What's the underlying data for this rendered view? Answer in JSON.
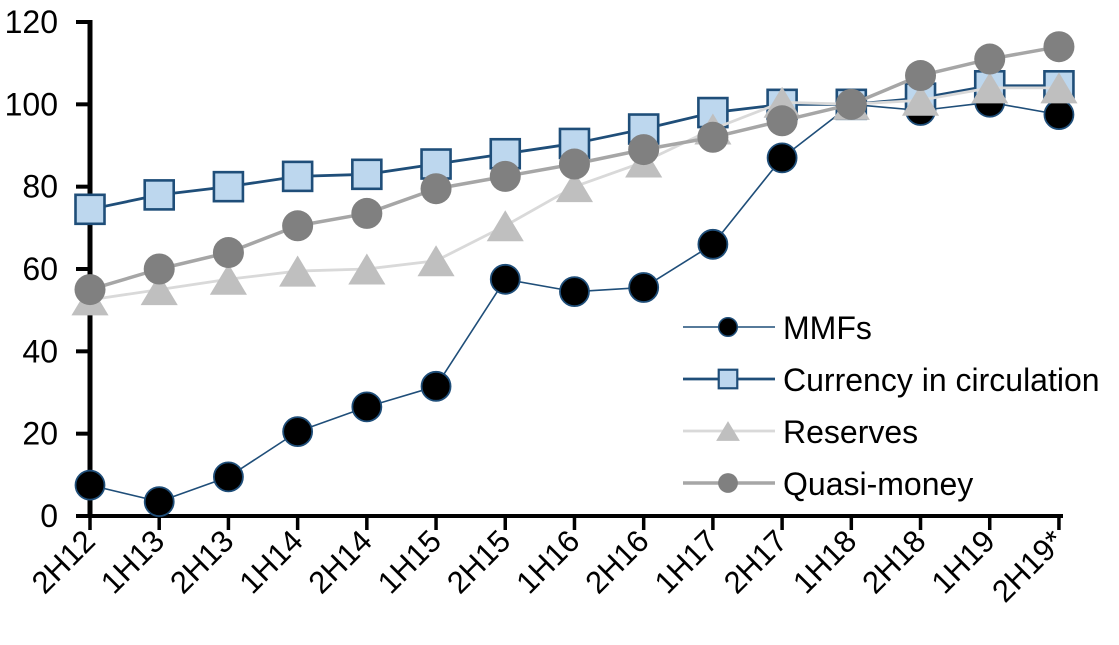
{
  "chart_data": {
    "type": "line",
    "title": "",
    "categories": [
      "2H12",
      "1H13",
      "2H13",
      "1H14",
      "2H14",
      "1H15",
      "2H15",
      "1H16",
      "2H16",
      "1H17",
      "2H17",
      "1H18",
      "2H18",
      "1H19",
      "2H19*"
    ],
    "series": [
      {
        "name": "MMFs",
        "marker": "circle",
        "marker_fill": "#000000",
        "marker_stroke": "#1F4E79",
        "line_color": "#1F4E79",
        "line_width": 1.6,
        "marker_size": 29,
        "values": [
          7.5,
          3.5,
          9.5,
          20.5,
          26.5,
          31.5,
          57.5,
          54.5,
          55.5,
          66,
          87,
          100,
          98.5,
          100.5,
          97.5
        ]
      },
      {
        "name": "Currency in circulation",
        "marker": "square",
        "marker_fill": "#BDD7EE",
        "marker_stroke": "#1F4E79",
        "line_color": "#1F4E79",
        "line_width": 2.8,
        "marker_size": 29,
        "values": [
          74.5,
          78,
          80,
          82.5,
          83,
          85.5,
          88,
          90.5,
          94,
          98,
          100,
          100,
          101.5,
          104.5,
          104.5
        ]
      },
      {
        "name": "Reserves",
        "marker": "triangle",
        "marker_fill": "#BFBFBF",
        "marker_stroke": "none",
        "line_color": "#D9D9D9",
        "line_width": 2.8,
        "marker_size": 32,
        "values": [
          52.5,
          55,
          57.5,
          59.5,
          60,
          62,
          70.5,
          80,
          86,
          94,
          100.5,
          100,
          101,
          104,
          104
        ]
      },
      {
        "name": "Quasi-money",
        "marker": "circle",
        "marker_fill": "#808080",
        "marker_stroke": "none",
        "line_color": "#A6A6A6",
        "line_width": 3.5,
        "marker_size": 31,
        "values": [
          55,
          60,
          64,
          70.5,
          73.5,
          79.5,
          82.5,
          85.5,
          89,
          92,
          96,
          100,
          107,
          111,
          114
        ]
      }
    ],
    "y_axis": {
      "min": 0,
      "max": 120,
      "tick_step": 20,
      "ticks": [
        "0",
        "20",
        "40",
        "60",
        "80",
        "100",
        "120"
      ]
    },
    "x_axis": {
      "label_rotation_degrees": -45
    },
    "legend": {
      "position": "inside-right",
      "items": [
        "MMFs",
        "Currency in circulation",
        "Reserves",
        "Quasi-money"
      ]
    },
    "axis_color": "#000000",
    "grid": false
  }
}
